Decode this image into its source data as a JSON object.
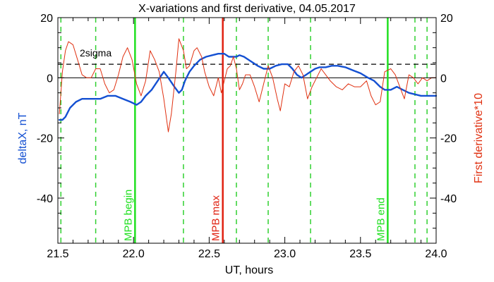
{
  "chart_data": {
    "type": "line",
    "title": "X-variations and first derivative, 04.05.2017",
    "xlabel": "UT, hours",
    "ylabel_left": "deltaX, nT",
    "ylabel_right": "First derivative*10",
    "xlim": [
      21.5,
      24.0
    ],
    "ylim": [
      -55,
      20
    ],
    "x_ticks": [
      "21.5",
      "22.0",
      "22.5",
      "23.0",
      "23.5",
      "24.0"
    ],
    "y_ticks_left": [
      "20",
      "0",
      "-20",
      "-40"
    ],
    "y_ticks_right": [
      "20",
      "0",
      "-20",
      "-40"
    ],
    "threshold": {
      "label": "2sigma",
      "value": 4.5,
      "color": "#000000"
    },
    "colors": {
      "deltaX": "#1450d2",
      "derivative": "#e03010",
      "marker_green": "#20e020",
      "marker_red": "#e02010",
      "dashed_green": "#30d030"
    },
    "markers": [
      {
        "label": "MPB begin",
        "x": 22.01,
        "color": "#20e020"
      },
      {
        "label": "MPB max",
        "x": 22.59,
        "color": "#e02010"
      },
      {
        "label": "MPB end",
        "x": 23.68,
        "color": "#20e020"
      }
    ],
    "dashed_lines_x": [
      21.52,
      21.75,
      22.33,
      22.68,
      22.89,
      23.17,
      23.86,
      23.94
    ],
    "series": [
      {
        "name": "deltaX",
        "axis": "left",
        "color": "#1450d2",
        "x": [
          21.51,
          21.53,
          21.55,
          21.58,
          21.62,
          21.66,
          21.7,
          21.73,
          21.78,
          21.83,
          21.88,
          21.93,
          21.98,
          22.02,
          22.05,
          22.08,
          22.12,
          22.16,
          22.2,
          22.23,
          22.27,
          22.3,
          22.32,
          22.34,
          22.37,
          22.4,
          22.44,
          22.48,
          22.52,
          22.56,
          22.6,
          22.63,
          22.66,
          22.68,
          22.7,
          22.73,
          22.76,
          22.79,
          22.82,
          22.86,
          22.9,
          22.94,
          22.98,
          23.02,
          23.05,
          23.08,
          23.11,
          23.14,
          23.17,
          23.2,
          23.23,
          23.27,
          23.31,
          23.35,
          23.4,
          23.45,
          23.5,
          23.55,
          23.59,
          23.63,
          23.66,
          23.7,
          23.74,
          23.78,
          23.82,
          23.86,
          23.9,
          23.94,
          24.0
        ],
        "y": [
          -14,
          -14,
          -13,
          -10,
          -8,
          -7,
          -7,
          -7,
          -7,
          -6,
          -6,
          -7,
          -8,
          -9,
          -8,
          -6,
          -4,
          -1,
          2,
          0,
          -3,
          -5,
          -4,
          -1,
          2,
          4,
          6,
          7,
          7.5,
          8,
          8,
          7,
          7,
          7,
          7.5,
          7,
          6,
          5,
          4,
          3,
          3,
          4,
          4.5,
          4.5,
          3,
          1,
          0,
          1,
          2,
          3,
          3.5,
          3.5,
          4,
          4,
          3.5,
          2.5,
          1.5,
          0,
          -1,
          -3,
          -4,
          -4,
          -3,
          -4,
          -5,
          -5.5,
          -6,
          -6,
          -6
        ]
      },
      {
        "name": "derivative",
        "axis": "right",
        "color": "#e03010",
        "x": [
          21.51,
          21.52,
          21.53,
          21.55,
          21.57,
          21.6,
          21.63,
          21.66,
          21.69,
          21.72,
          21.75,
          21.78,
          21.81,
          21.84,
          21.87,
          21.9,
          21.93,
          21.96,
          21.99,
          22.02,
          22.05,
          22.08,
          22.11,
          22.14,
          22.17,
          22.2,
          22.23,
          22.25,
          22.28,
          22.3,
          22.33,
          22.35,
          22.37,
          22.4,
          22.42,
          22.45,
          22.47,
          22.5,
          22.53,
          22.56,
          22.58,
          22.6,
          22.62,
          22.64,
          22.66,
          22.68,
          22.7,
          22.72,
          22.74,
          22.77,
          22.8,
          22.83,
          22.86,
          22.89,
          22.92,
          22.95,
          22.97,
          23.0,
          23.03,
          23.06,
          23.09,
          23.12,
          23.15,
          23.18,
          23.21,
          23.24,
          23.27,
          23.3,
          23.34,
          23.38,
          23.42,
          23.46,
          23.5,
          23.54,
          23.57,
          23.6,
          23.63,
          23.66,
          23.7,
          23.73,
          23.76,
          23.79,
          23.82,
          23.85,
          23.88,
          23.91,
          23.94,
          23.97,
          24.0
        ],
        "y": [
          -12,
          -5,
          2,
          9,
          12,
          11,
          6,
          1,
          0,
          0,
          3,
          3,
          -2,
          -5,
          -4,
          1,
          7,
          10,
          6,
          -2,
          -6,
          -1,
          9,
          6,
          2,
          -7,
          -18,
          -12,
          2,
          13,
          9,
          3,
          4,
          9,
          10,
          7,
          2,
          -3,
          -6,
          0,
          -5,
          -1,
          3,
          4,
          7,
          3,
          -4,
          -2,
          1,
          1,
          -3,
          -8,
          -2,
          4,
          0,
          -7,
          -11,
          -2,
          -3,
          2,
          4,
          1,
          -7,
          -3,
          0,
          3,
          1,
          -1,
          -3,
          -4,
          -2,
          -3,
          -3,
          -1,
          -6,
          -9,
          -8,
          2,
          3,
          1,
          -3,
          -7,
          1,
          0,
          -2,
          0,
          -1,
          0,
          0
        ]
      }
    ]
  }
}
